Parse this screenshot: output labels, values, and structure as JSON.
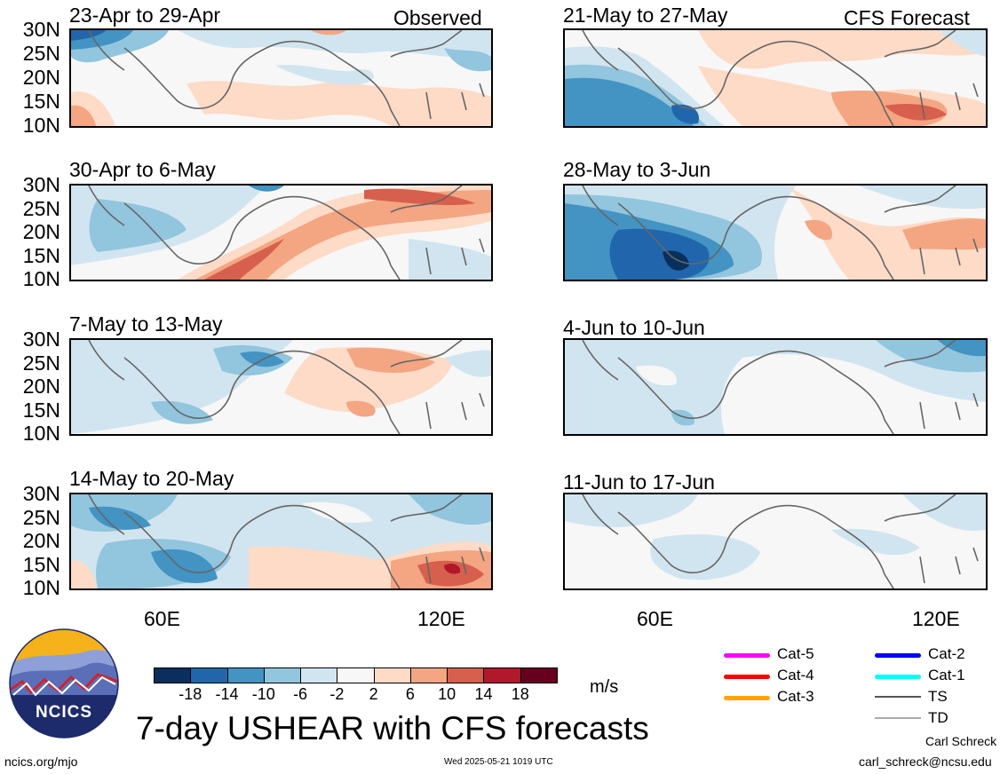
{
  "corner_labels": {
    "observed": "Observed",
    "forecast": "CFS Forecast"
  },
  "lat_ticks": [
    "30N",
    "25N",
    "20N",
    "15N",
    "10N"
  ],
  "lon_ticks": [
    "60E",
    "120E"
  ],
  "panels_left": [
    {
      "label": "23-Apr to 29-Apr"
    },
    {
      "label": "30-Apr to 6-May"
    },
    {
      "label": "7-May to 13-May"
    },
    {
      "label": "14-May to 20-May"
    }
  ],
  "panels_right": [
    {
      "label": "21-May to 27-May"
    },
    {
      "label": "28-May to 3-Jun"
    },
    {
      "label": "4-Jun to 10-Jun"
    },
    {
      "label": "11-Jun to 17-Jun"
    }
  ],
  "colorbar": {
    "ticks": [
      "-18",
      "-14",
      "-10",
      "-6",
      "-2",
      "2",
      "6",
      "10",
      "14",
      "18"
    ],
    "colors": [
      "#0a2f5c",
      "#2166ac",
      "#4393c3",
      "#92c5de",
      "#d1e5f0",
      "#f7f7f7",
      "#fddbc7",
      "#f4a582",
      "#d6604d",
      "#b2182b",
      "#67001f"
    ],
    "units": "m/s"
  },
  "legend": {
    "items": [
      {
        "label": "Cat-5",
        "color": "#ff00ff"
      },
      {
        "label": "Cat-4",
        "color": "#ff0000"
      },
      {
        "label": "Cat-3",
        "color": "#ffa500"
      },
      {
        "label": "Cat-2",
        "color": "#0000ff"
      },
      {
        "label": "Cat-1",
        "color": "#00ffff"
      },
      {
        "label": "TS",
        "color": "#555555"
      },
      {
        "label": "TD",
        "color": "#aaaaaa"
      }
    ]
  },
  "logo": {
    "text": "NCICS"
  },
  "title": "7-day USHEAR with CFS forecasts",
  "footer": {
    "url": "ncics.org/mjo",
    "timestamp": "Wed 2025-05-21 1019 UTC",
    "author": "Carl Schreck",
    "email": "carl_schreck@ncsu.edu"
  },
  "chart_data": {
    "type": "heatmap",
    "variable": "USHEAR",
    "units": "m/s",
    "region": {
      "lat_range": [
        "10N",
        "30N"
      ],
      "lon_range_approx": [
        "40E",
        "130E"
      ]
    },
    "contour_levels": [
      -18,
      -14,
      -10,
      -6,
      -2,
      2,
      6,
      10,
      14,
      18
    ],
    "panels": [
      {
        "period": "23-Apr to 29-Apr",
        "source": "Observed",
        "pattern": "negative north of 25N west, weak positive south-west and east"
      },
      {
        "period": "30-Apr to 6-May",
        "source": "Observed",
        "pattern": "positive band from 60E-75E south to 100E-125E north"
      },
      {
        "period": "7-May to 13-May",
        "source": "Observed",
        "pattern": "weak negative west, weak positive over 95E-120E"
      },
      {
        "period": "14-May to 20-May",
        "source": "Observed",
        "pattern": "negative over Arabian Sea, strong positive near 120E 15N"
      },
      {
        "period": "21-May to 27-May",
        "source": "CFS Forecast",
        "pattern": "negative over Arabian Sea, positive near 100E-120E 12N"
      },
      {
        "period": "28-May to 3-Jun",
        "source": "CFS Forecast",
        "pattern": "strong negative centred near 65E 13N"
      },
      {
        "period": "4-Jun to 10-Jun",
        "source": "CFS Forecast",
        "pattern": "weak negative across most of domain, stronger near 120E 30N"
      },
      {
        "period": "11-Jun to 17-Jun",
        "source": "CFS Forecast",
        "pattern": "weak negative"
      }
    ]
  }
}
